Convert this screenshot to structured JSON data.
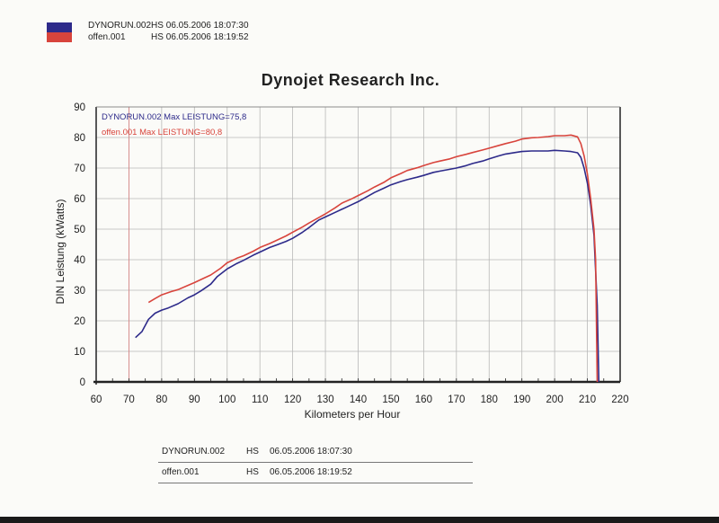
{
  "header": {
    "runs": [
      {
        "name": "DYNORUN.002",
        "mode": "HS",
        "datetime": "06.05.2006 18:07:30"
      },
      {
        "name": "offen.001",
        "mode": "HS",
        "datetime": "06.05.2006 18:19:52"
      }
    ]
  },
  "chart_data": {
    "type": "line",
    "title": "Dynojet Research Inc.",
    "xlabel": "Kilometers per Hour",
    "ylabel": "DIN Leistung (kWatts)",
    "xlim": [
      60,
      220
    ],
    "ylim": [
      0,
      90
    ],
    "xticks": [
      "60",
      "70",
      "80",
      "90",
      "100",
      "110",
      "120",
      "130",
      "140",
      "150",
      "160",
      "170",
      "180",
      "190",
      "200",
      "210",
      "220"
    ],
    "yticks": [
      "0",
      "10",
      "20",
      "30",
      "40",
      "50",
      "60",
      "70",
      "80",
      "90"
    ],
    "grid": true,
    "legend_placement": "top-left",
    "annotations": [
      "DYNORUN.002  Max LEISTUNG=75,8",
      "offen.001  Max LEISTUNG=80,8"
    ],
    "series": [
      {
        "name": "DYNORUN.002",
        "color": "#2d2a8a",
        "x": [
          72,
          74,
          76,
          78,
          80,
          82,
          85,
          88,
          90,
          92,
          95,
          97,
          100,
          103,
          105,
          108,
          110,
          113,
          115,
          118,
          120,
          123,
          125,
          128,
          130,
          133,
          135,
          138,
          140,
          143,
          145,
          148,
          150,
          153,
          155,
          158,
          160,
          163,
          165,
          168,
          170,
          173,
          175,
          178,
          180,
          183,
          185,
          188,
          190,
          193,
          195,
          198,
          200,
          203,
          205,
          207,
          208,
          209,
          210,
          211,
          212,
          213,
          213.5
        ],
        "y": [
          14.5,
          16.5,
          20.5,
          22.5,
          23.5,
          24.2,
          25.6,
          27.5,
          28.5,
          29.8,
          32,
          34.5,
          37,
          38.8,
          39.8,
          41.5,
          42.5,
          44,
          44.8,
          46,
          47,
          49,
          50.5,
          53,
          54,
          55.5,
          56.5,
          58,
          59,
          60.8,
          62,
          63.5,
          64.5,
          65.6,
          66.2,
          67,
          67.6,
          68.6,
          69,
          69.6,
          70,
          70.8,
          71.5,
          72.3,
          73,
          74,
          74.6,
          75.1,
          75.4,
          75.6,
          75.6,
          75.6,
          75.8,
          75.6,
          75.4,
          75,
          73.5,
          70,
          65,
          58,
          48,
          25,
          0
        ]
      },
      {
        "name": "offen.001",
        "color": "#d8443c",
        "x": [
          76,
          78,
          80,
          83,
          85,
          88,
          90,
          93,
          95,
          98,
          100,
          103,
          105,
          108,
          110,
          113,
          115,
          118,
          120,
          123,
          125,
          128,
          130,
          133,
          135,
          138,
          140,
          143,
          145,
          148,
          150,
          153,
          155,
          158,
          160,
          163,
          165,
          168,
          170,
          173,
          175,
          178,
          180,
          183,
          185,
          188,
          190,
          193,
          195,
          198,
          200,
          203,
          205,
          207,
          208,
          209,
          210,
          211,
          212,
          212.5,
          213
        ],
        "y": [
          26,
          27.3,
          28.5,
          29.6,
          30.2,
          31.6,
          32.5,
          34,
          35,
          37.2,
          39,
          40.5,
          41.3,
          42.8,
          44,
          45.3,
          46.3,
          47.8,
          49,
          50.7,
          52,
          53.8,
          55,
          57,
          58.5,
          59.9,
          61,
          62.6,
          63.8,
          65.4,
          66.8,
          68.2,
          69.2,
          70.1,
          70.8,
          71.8,
          72.3,
          73,
          73.7,
          74.5,
          75.1,
          75.9,
          76.5,
          77.4,
          78,
          78.8,
          79.5,
          79.9,
          80,
          80.3,
          80.6,
          80.6,
          80.8,
          80.2,
          78,
          74,
          68,
          60,
          50,
          40,
          0
        ]
      }
    ]
  },
  "table": {
    "rows": [
      {
        "name": "DYNORUN.002",
        "mode": "HS",
        "datetime": "06.05.2006 18:07:30"
      },
      {
        "name": "offen.001",
        "mode": "HS",
        "datetime": "06.05.2006 18:19:52"
      }
    ]
  }
}
